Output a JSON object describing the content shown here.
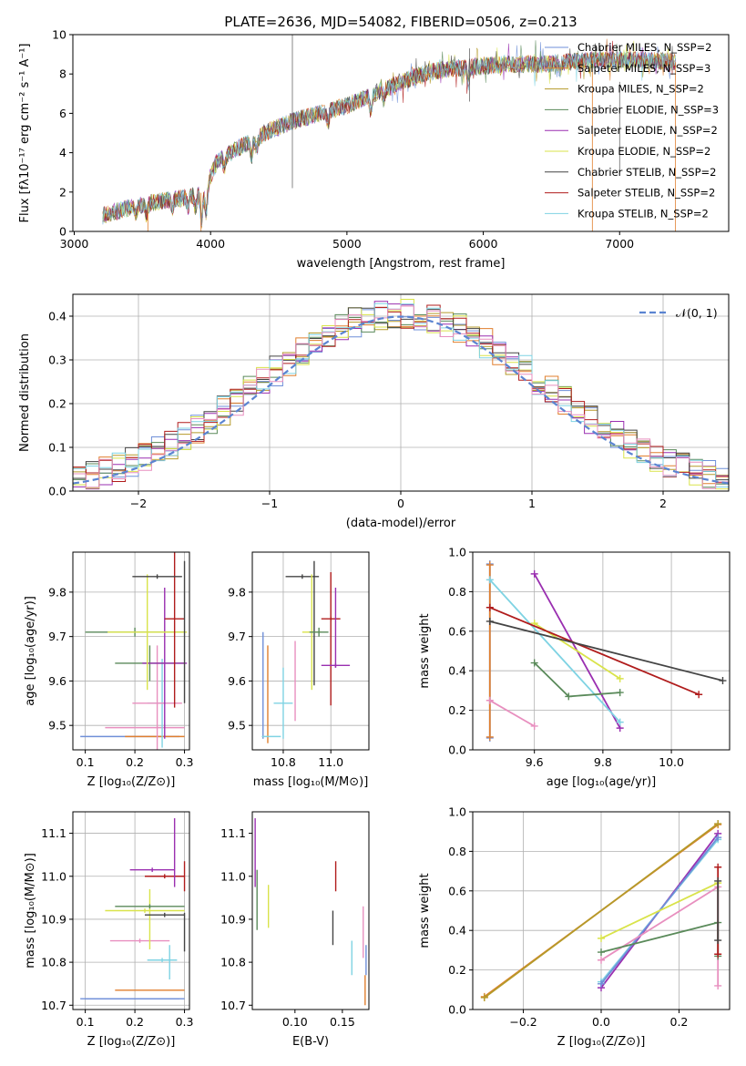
{
  "title": "PLATE=2636, MJD=54082, FIBERID=0506, z=0.213",
  "colors": {
    "c0": "#6f8fd8",
    "c1": "#e07f2e",
    "c2": "#b59a2a",
    "c3": "#5a8a5a",
    "c4": "#9a2fb0",
    "c5": "#d9e34a",
    "c6": "#444444",
    "c7": "#b01c1c",
    "c8": "#7fd3e3",
    "c9": "#e88fbf",
    "norm": "#5b84d1"
  },
  "chart_data": [
    {
      "id": "spectrum",
      "type": "line",
      "xlabel": "wavelength [Angstrom, rest frame]",
      "ylabel": "Flux [fλ10⁻¹⁷ erg cm⁻² s⁻¹ A⁻¹]",
      "xlim": [
        2990,
        7800
      ],
      "ylim": [
        0,
        10
      ],
      "xticks": [
        3000,
        4000,
        5000,
        6000,
        7000
      ],
      "yticks": [
        0,
        2,
        4,
        6,
        8,
        10
      ],
      "legend_position": "right",
      "legend": [
        {
          "label": "Chabrier MILES, N_SSP=2",
          "color": "c0"
        },
        {
          "label": "Salpeter MILES, N_SSP=3",
          "color": "c1"
        },
        {
          "label": "Kroupa MILES, N_SSP=2",
          "color": "c2"
        },
        {
          "label": "Chabrier ELODIE, N_SSP=3",
          "color": "c3"
        },
        {
          "label": "Salpeter ELODIE, N_SSP=2",
          "color": "c4"
        },
        {
          "label": "Kroupa ELODIE, N_SSP=2",
          "color": "c5"
        },
        {
          "label": "Chabrier STELIB, N_SSP=2",
          "color": "c6"
        },
        {
          "label": "Salpeter STELIB, N_SSP=2",
          "color": "c7"
        },
        {
          "label": "Kroupa STELIB, N_SSP=2",
          "color": "c8"
        }
      ],
      "continuum": [
        [
          3210,
          0.8
        ],
        [
          3400,
          1.2
        ],
        [
          3600,
          1.5
        ],
        [
          3800,
          1.7
        ],
        [
          3950,
          2.0
        ],
        [
          4050,
          3.6
        ],
        [
          4200,
          4.2
        ],
        [
          4400,
          5.0
        ],
        [
          4600,
          5.6
        ],
        [
          4800,
          6.0
        ],
        [
          5000,
          6.4
        ],
        [
          5200,
          7.0
        ],
        [
          5400,
          7.6
        ],
        [
          5600,
          8.1
        ],
        [
          5800,
          8.3
        ],
        [
          6000,
          8.4
        ],
        [
          6200,
          8.5
        ],
        [
          6400,
          8.5
        ],
        [
          6600,
          8.6
        ],
        [
          6800,
          8.7
        ],
        [
          7000,
          8.7
        ],
        [
          7200,
          8.7
        ],
        [
          7400,
          8.6
        ]
      ],
      "absorption_features": [
        [
          3450,
          -0.4
        ],
        [
          3530,
          -0.5
        ],
        [
          3720,
          -0.4
        ],
        [
          3835,
          -0.5
        ],
        [
          3890,
          -0.7
        ],
        [
          3933,
          -1.5
        ],
        [
          3968,
          -1.3
        ],
        [
          4101,
          -0.6
        ],
        [
          4300,
          -0.8
        ],
        [
          4340,
          -0.5
        ],
        [
          4861,
          -0.6
        ],
        [
          5175,
          -0.8
        ],
        [
          5270,
          -0.5
        ],
        [
          5890,
          -0.6
        ],
        [
          6563,
          -0.4
        ]
      ],
      "spikes": [
        [
          4600,
          10.0,
          2.2
        ],
        [
          5900,
          9.3,
          6.6
        ],
        [
          7000,
          7.6,
          3.0
        ]
      ],
      "outliers": [
        [
          3540,
          0.0
        ],
        [
          3930,
          0.0
        ],
        [
          6800,
          0.0
        ],
        [
          7410,
          0.0
        ]
      ]
    },
    {
      "id": "residuals",
      "type": "step",
      "xlabel": "(data-model)/error",
      "ylabel": "Normed distribution",
      "xlim": [
        -2.5,
        2.5
      ],
      "ylim": [
        0,
        0.45
      ],
      "xticks": [
        -2,
        -1,
        0,
        1,
        2
      ],
      "yticks": [
        0.0,
        0.1,
        0.2,
        0.3,
        0.4
      ],
      "grid": true,
      "legend_position": "top-right",
      "legend": [
        {
          "label": "𝒩(0, 1)",
          "color": "norm",
          "style": "dashed"
        }
      ],
      "bin_width": 0.1,
      "bin_start": -2.5,
      "series_hint": "each model has its own histogram approximating N(0,1)"
    },
    {
      "id": "age_vs_Z",
      "type": "errorbar",
      "xlabel": "Z [log₁₀(Z/Z⊙)]",
      "ylabel": "age  [log₁₀(age/yr)]",
      "xlim": [
        0.075,
        0.31
      ],
      "ylim": [
        9.445,
        9.89
      ],
      "xticks": [
        0.1,
        0.2,
        0.3
      ],
      "yticks": [
        9.5,
        9.6,
        9.7,
        9.8
      ],
      "grid": true,
      "points": [
        {
          "x": 0.19,
          "xerr": 0.1,
          "y": 9.475,
          "yerr": 0,
          "color": "c0"
        },
        {
          "x": 0.24,
          "xerr": 0.06,
          "y": 9.475,
          "yerr": 0,
          "color": "c1"
        },
        {
          "x": 0.22,
          "xerr": 0.08,
          "y": 9.495,
          "yerr": 0,
          "color": "c9"
        },
        {
          "x": 0.255,
          "xerr": 0.03,
          "y": 9.55,
          "yerr": 0.1,
          "color": "c8"
        },
        {
          "x": 0.245,
          "xerr": 0.05,
          "y": 9.55,
          "yerr": 0.13,
          "color": "c9"
        },
        {
          "x": 0.23,
          "xerr": 0.07,
          "y": 9.64,
          "yerr": 0.04,
          "color": "c3"
        },
        {
          "x": 0.26,
          "xerr": 0.045,
          "y": 9.64,
          "yerr": 0.17,
          "color": "c4"
        },
        {
          "x": 0.2,
          "xerr": 0.1,
          "y": 9.71,
          "yerr": 0.01,
          "color": "c3"
        },
        {
          "x": 0.225,
          "xerr": 0.08,
          "y": 9.71,
          "yerr": 0.13,
          "color": "c5"
        },
        {
          "x": 0.28,
          "xerr": 0.02,
          "y": 9.74,
          "yerr": 0.2,
          "color": "c7"
        },
        {
          "x": 0.245,
          "xerr": 0.05,
          "y": 9.835,
          "yerr": 0.005,
          "color": "c6"
        },
        {
          "x": 0.3,
          "xerr": 0,
          "y": 9.71,
          "yerr": 0.16,
          "color": "c6"
        }
      ]
    },
    {
      "id": "age_vs_mass",
      "type": "errorbar",
      "xlabel": "mass [log₁₀(M/M⊙)]",
      "ylabel": "",
      "xlim": [
        10.67,
        11.16
      ],
      "ylim": [
        9.445,
        9.89
      ],
      "xticks": [
        10.8,
        11.0
      ],
      "yticks": [
        9.5,
        9.6,
        9.7,
        9.8
      ],
      "grid": true,
      "points": [
        {
          "x": 10.715,
          "xerr": 0.0,
          "y": 9.59,
          "yerr": 0.12,
          "color": "c0"
        },
        {
          "x": 10.735,
          "xerr": 0.0,
          "y": 9.57,
          "yerr": 0.11,
          "color": "c1"
        },
        {
          "x": 10.75,
          "xerr": 0.04,
          "y": 9.475,
          "yerr": 0,
          "color": "c8"
        },
        {
          "x": 10.8,
          "xerr": 0.04,
          "y": 9.55,
          "yerr": 0.08,
          "color": "c8"
        },
        {
          "x": 10.85,
          "xerr": 0.0,
          "y": 9.6,
          "yerr": 0.09,
          "color": "c9"
        },
        {
          "x": 10.88,
          "xerr": 0.07,
          "y": 9.835,
          "yerr": 0.005,
          "color": "c6"
        },
        {
          "x": 10.92,
          "xerr": 0.04,
          "y": 9.71,
          "yerr": 0.13,
          "color": "c5"
        },
        {
          "x": 10.93,
          "xerr": 0.0,
          "y": 9.73,
          "yerr": 0.14,
          "color": "c6"
        },
        {
          "x": 10.95,
          "xerr": 0.04,
          "y": 9.71,
          "yerr": 0.01,
          "color": "c3"
        },
        {
          "x": 11.0,
          "xerr": 0.0,
          "y": 9.695,
          "yerr": 0.15,
          "color": "c7"
        },
        {
          "x": 11.0,
          "xerr": 0.04,
          "y": 9.74,
          "yerr": 0.005,
          "color": "c7"
        },
        {
          "x": 11.02,
          "xerr": 0.06,
          "y": 9.635,
          "yerr": 0.005,
          "color": "c4"
        },
        {
          "x": 11.02,
          "xerr": 0.0,
          "y": 9.72,
          "yerr": 0.09,
          "color": "c4"
        }
      ]
    },
    {
      "id": "weight_vs_age",
      "type": "line",
      "xlabel": "age  [log₁₀(age/yr)]",
      "ylabel": "mass weight",
      "xlim": [
        9.42,
        10.17
      ],
      "ylim": [
        0,
        1
      ],
      "xticks": [
        9.6,
        9.8,
        10.0
      ],
      "yticks": [
        0.0,
        0.2,
        0.4,
        0.6,
        0.8,
        1.0
      ],
      "grid": true,
      "series": [
        {
          "color": "c0",
          "points": [
            [
              9.47,
              0.06
            ],
            [
              9.47,
              0.94
            ]
          ]
        },
        {
          "color": "c1",
          "points": [
            [
              9.47,
              0.065
            ],
            [
              9.47,
              0.935
            ]
          ]
        },
        {
          "color": "c9",
          "points": [
            [
              9.47,
              0.25
            ],
            [
              9.6,
              0.12
            ]
          ]
        },
        {
          "color": "c4",
          "points": [
            [
              9.6,
              0.89
            ],
            [
              9.85,
              0.11
            ]
          ]
        },
        {
          "color": "c8",
          "points": [
            [
              9.47,
              0.86
            ],
            [
              9.85,
              0.14
            ]
          ]
        },
        {
          "color": "c5",
          "points": [
            [
              9.6,
              0.64
            ],
            [
              9.85,
              0.36
            ]
          ]
        },
        {
          "color": "c3",
          "points": [
            [
              9.6,
              0.44
            ],
            [
              9.7,
              0.27
            ],
            [
              9.85,
              0.29
            ]
          ]
        },
        {
          "color": "c7",
          "points": [
            [
              9.47,
              0.72
            ],
            [
              10.08,
              0.28
            ]
          ]
        },
        {
          "color": "c6",
          "points": [
            [
              9.47,
              0.65
            ],
            [
              10.15,
              0.35
            ]
          ]
        }
      ]
    },
    {
      "id": "mass_vs_Z",
      "type": "errorbar",
      "xlabel": "Z [log₁₀(Z/Z⊙)]",
      "ylabel": "mass [log₁₀(M/M⊙)]",
      "xlim": [
        0.075,
        0.31
      ],
      "ylim": [
        10.69,
        11.15
      ],
      "xticks": [
        0.1,
        0.2,
        0.3
      ],
      "yticks": [
        10.7,
        10.8,
        10.9,
        11.0,
        11.1
      ],
      "grid": true,
      "points": [
        {
          "x": 0.19,
          "xerr": 0.1,
          "y": 10.715,
          "yerr": 0,
          "color": "c0"
        },
        {
          "x": 0.23,
          "xerr": 0.07,
          "y": 10.735,
          "yerr": 0,
          "color": "c1"
        },
        {
          "x": 0.2,
          "xerr": 0.1,
          "y": 10.715,
          "yerr": 0,
          "color": "c0"
        },
        {
          "x": 0.255,
          "xerr": 0.03,
          "y": 10.805,
          "yerr": 0.005,
          "color": "c8"
        },
        {
          "x": 0.27,
          "xerr": 0.0,
          "y": 10.8,
          "yerr": 0.04,
          "color": "c8"
        },
        {
          "x": 0.21,
          "xerr": 0.06,
          "y": 10.85,
          "yerr": 0.005,
          "color": "c9"
        },
        {
          "x": 0.23,
          "xerr": 0.0,
          "y": 10.9,
          "yerr": 0.07,
          "color": "c5"
        },
        {
          "x": 0.22,
          "xerr": 0.08,
          "y": 10.92,
          "yerr": 0.005,
          "color": "c5"
        },
        {
          "x": 0.23,
          "xerr": 0.07,
          "y": 10.93,
          "yerr": 0.005,
          "color": "c3"
        },
        {
          "x": 0.26,
          "xerr": 0.04,
          "y": 10.91,
          "yerr": 0.005,
          "color": "c6"
        },
        {
          "x": 0.3,
          "xerr": 0.0,
          "y": 10.87,
          "yerr": 0.045,
          "color": "c6"
        },
        {
          "x": 0.26,
          "xerr": 0.04,
          "y": 11.0,
          "yerr": 0.005,
          "color": "c7"
        },
        {
          "x": 0.3,
          "xerr": 0.0,
          "y": 11.0,
          "yerr": 0.035,
          "color": "c7"
        },
        {
          "x": 0.235,
          "xerr": 0.045,
          "y": 11.015,
          "yerr": 0.005,
          "color": "c4"
        },
        {
          "x": 0.28,
          "xerr": 0.0,
          "y": 11.055,
          "yerr": 0.08,
          "color": "c4"
        }
      ]
    },
    {
      "id": "mass_vs_ebv",
      "type": "errorbar",
      "xlabel": "E(B-V)",
      "ylabel": "",
      "xlim": [
        0.055,
        0.178
      ],
      "ylim": [
        10.69,
        11.15
      ],
      "xticks": [
        0.1,
        0.15
      ],
      "yticks": [
        10.7,
        10.8,
        10.9,
        11.0,
        11.1
      ],
      "grid": false,
      "points": [
        {
          "x": 0.058,
          "xerr": 0,
          "y": 11.055,
          "yerr": 0.08,
          "color": "c4"
        },
        {
          "x": 0.06,
          "xerr": 0,
          "y": 10.945,
          "yerr": 0.07,
          "color": "c3"
        },
        {
          "x": 0.072,
          "xerr": 0,
          "y": 10.93,
          "yerr": 0.05,
          "color": "c5"
        },
        {
          "x": 0.14,
          "xerr": 0,
          "y": 10.88,
          "yerr": 0.04,
          "color": "c6"
        },
        {
          "x": 0.143,
          "xerr": 0,
          "y": 11.0,
          "yerr": 0.035,
          "color": "c7"
        },
        {
          "x": 0.16,
          "xerr": 0,
          "y": 10.81,
          "yerr": 0.04,
          "color": "c8"
        },
        {
          "x": 0.172,
          "xerr": 0,
          "y": 10.87,
          "yerr": 0.06,
          "color": "c9"
        },
        {
          "x": 0.174,
          "xerr": 0,
          "y": 10.735,
          "yerr": 0.035,
          "color": "c1"
        },
        {
          "x": 0.175,
          "xerr": 0,
          "y": 10.805,
          "yerr": 0.035,
          "color": "c0"
        }
      ]
    },
    {
      "id": "weight_vs_Z",
      "type": "line",
      "xlabel": "Z [log₁₀(Z/Z⊙)]",
      "ylabel": "mass weight",
      "xlim": [
        -0.33,
        0.33
      ],
      "ylim": [
        0,
        1
      ],
      "xticks": [
        -0.2,
        0.0,
        0.2
      ],
      "yticks": [
        0.0,
        0.2,
        0.4,
        0.6,
        0.8,
        1.0
      ],
      "grid": true,
      "series": [
        {
          "color": "c1",
          "points": [
            [
              -0.3,
              0.065
            ],
            [
              0.3,
              0.935
            ]
          ]
        },
        {
          "color": "c2",
          "points": [
            [
              -0.3,
              0.06
            ],
            [
              0.3,
              0.94
            ]
          ]
        },
        {
          "color": "c4",
          "points": [
            [
              0.0,
              0.11
            ],
            [
              0.3,
              0.89
            ]
          ]
        },
        {
          "color": "c8",
          "points": [
            [
              0.0,
              0.14
            ],
            [
              0.3,
              0.86
            ]
          ]
        },
        {
          "color": "c0",
          "points": [
            [
              0.0,
              0.13
            ],
            [
              0.3,
              0.87
            ]
          ]
        },
        {
          "color": "c5",
          "points": [
            [
              0.0,
              0.36
            ],
            [
              0.3,
              0.64
            ]
          ]
        },
        {
          "color": "c9",
          "points": [
            [
              0.0,
              0.25
            ],
            [
              0.3,
              0.62
            ],
            [
              0.3,
              0.12
            ]
          ]
        },
        {
          "color": "c3",
          "points": [
            [
              0.0,
              0.29
            ],
            [
              0.3,
              0.44
            ],
            [
              0.3,
              0.27
            ]
          ]
        },
        {
          "color": "c7",
          "points": [
            [
              0.3,
              0.72
            ],
            [
              0.3,
              0.28
            ]
          ]
        },
        {
          "color": "c6",
          "points": [
            [
              0.3,
              0.65
            ],
            [
              0.3,
              0.35
            ]
          ]
        }
      ]
    }
  ]
}
